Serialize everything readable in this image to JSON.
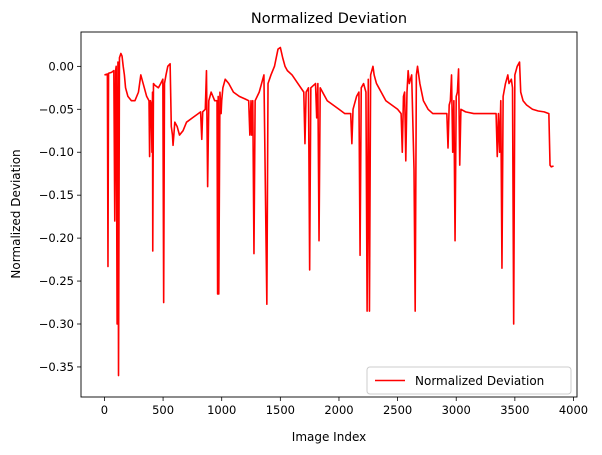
{
  "chart_data": {
    "type": "line",
    "title": "Normalized Deviation",
    "xlabel": "Image Index",
    "ylabel": "Normalized Deviation",
    "xlim": [
      -200,
      4030
    ],
    "ylim": [
      -0.385,
      0.04
    ],
    "xticks": [
      0,
      500,
      1000,
      1500,
      2000,
      2500,
      3000,
      3500,
      4000
    ],
    "yticks": [
      0.0,
      -0.05,
      -0.1,
      -0.15,
      -0.2,
      -0.25,
      -0.3,
      -0.35
    ],
    "ytick_labels": [
      "0.00",
      "−0.05",
      "−0.10",
      "−0.15",
      "−0.20",
      "−0.25",
      "−0.30",
      "−0.35"
    ],
    "grid": false,
    "legend_position": "lower-right",
    "series": [
      {
        "name": "Normalized Deviation",
        "color": "#ff0000",
        "points": [
          [
            0,
            -0.01
          ],
          [
            25,
            -0.009
          ],
          [
            30,
            -0.233
          ],
          [
            35,
            -0.008
          ],
          [
            60,
            -0.007
          ],
          [
            80,
            -0.005
          ],
          [
            88,
            -0.18
          ],
          [
            95,
            -0.005
          ],
          [
            100,
            0.0
          ],
          [
            108,
            -0.3
          ],
          [
            115,
            0.005
          ],
          [
            120,
            -0.36
          ],
          [
            128,
            0.01
          ],
          [
            140,
            0.015
          ],
          [
            150,
            0.012
          ],
          [
            160,
            0.0
          ],
          [
            170,
            -0.01
          ],
          [
            180,
            -0.025
          ],
          [
            200,
            -0.035
          ],
          [
            230,
            -0.04
          ],
          [
            260,
            -0.04
          ],
          [
            290,
            -0.03
          ],
          [
            310,
            -0.01
          ],
          [
            330,
            -0.02
          ],
          [
            360,
            -0.035
          ],
          [
            380,
            -0.04
          ],
          [
            385,
            -0.105
          ],
          [
            392,
            -0.04
          ],
          [
            400,
            -0.045
          ],
          [
            405,
            -0.1
          ],
          [
            410,
            -0.03
          ],
          [
            412,
            -0.215
          ],
          [
            418,
            -0.02
          ],
          [
            430,
            -0.022
          ],
          [
            460,
            -0.025
          ],
          [
            480,
            -0.02
          ],
          [
            498,
            -0.015
          ],
          [
            505,
            -0.275
          ],
          [
            512,
            -0.02
          ],
          [
            525,
            -0.01
          ],
          [
            540,
            0.0
          ],
          [
            560,
            0.003
          ],
          [
            570,
            -0.07
          ],
          [
            580,
            -0.08
          ],
          [
            585,
            -0.092
          ],
          [
            600,
            -0.065
          ],
          [
            620,
            -0.07
          ],
          [
            640,
            -0.08
          ],
          [
            670,
            -0.075
          ],
          [
            700,
            -0.065
          ],
          [
            750,
            -0.06
          ],
          [
            800,
            -0.055
          ],
          [
            820,
            -0.053
          ],
          [
            830,
            -0.085
          ],
          [
            838,
            -0.053
          ],
          [
            860,
            -0.05
          ],
          [
            870,
            -0.005
          ],
          [
            880,
            -0.14
          ],
          [
            890,
            -0.04
          ],
          [
            910,
            -0.03
          ],
          [
            940,
            -0.04
          ],
          [
            960,
            -0.04
          ],
          [
            965,
            -0.265
          ],
          [
            970,
            -0.035
          ],
          [
            975,
            -0.265
          ],
          [
            985,
            -0.03
          ],
          [
            995,
            -0.055
          ],
          [
            1000,
            -0.04
          ],
          [
            1010,
            -0.025
          ],
          [
            1030,
            -0.015
          ],
          [
            1060,
            -0.02
          ],
          [
            1100,
            -0.03
          ],
          [
            1150,
            -0.035
          ],
          [
            1200,
            -0.038
          ],
          [
            1230,
            -0.04
          ],
          [
            1240,
            -0.08
          ],
          [
            1250,
            -0.04
          ],
          [
            1255,
            -0.08
          ],
          [
            1265,
            -0.04
          ],
          [
            1275,
            -0.218
          ],
          [
            1285,
            -0.04
          ],
          [
            1320,
            -0.03
          ],
          [
            1360,
            -0.01
          ],
          [
            1385,
            -0.277
          ],
          [
            1395,
            -0.02
          ],
          [
            1420,
            -0.01
          ],
          [
            1450,
            0.0
          ],
          [
            1480,
            0.02
          ],
          [
            1500,
            0.022
          ],
          [
            1520,
            0.01
          ],
          [
            1540,
            0.0
          ],
          [
            1560,
            -0.005
          ],
          [
            1600,
            -0.01
          ],
          [
            1650,
            -0.02
          ],
          [
            1700,
            -0.03
          ],
          [
            1710,
            -0.09
          ],
          [
            1720,
            -0.03
          ],
          [
            1740,
            -0.025
          ],
          [
            1750,
            -0.237
          ],
          [
            1760,
            -0.025
          ],
          [
            1800,
            -0.02
          ],
          [
            1810,
            -0.06
          ],
          [
            1820,
            -0.02
          ],
          [
            1830,
            -0.203
          ],
          [
            1840,
            -0.025
          ],
          [
            1900,
            -0.04
          ],
          [
            1950,
            -0.045
          ],
          [
            2000,
            -0.05
          ],
          [
            2050,
            -0.055
          ],
          [
            2100,
            -0.055
          ],
          [
            2110,
            -0.09
          ],
          [
            2120,
            -0.05
          ],
          [
            2150,
            -0.035
          ],
          [
            2170,
            -0.03
          ],
          [
            2180,
            -0.22
          ],
          [
            2190,
            -0.025
          ],
          [
            2210,
            -0.02
          ],
          [
            2230,
            -0.03
          ],
          [
            2240,
            -0.285
          ],
          [
            2250,
            -0.015
          ],
          [
            2260,
            -0.285
          ],
          [
            2270,
            -0.01
          ],
          [
            2290,
            0.0
          ],
          [
            2300,
            -0.01
          ],
          [
            2320,
            -0.02
          ],
          [
            2340,
            -0.025
          ],
          [
            2360,
            -0.03
          ],
          [
            2400,
            -0.04
          ],
          [
            2450,
            -0.045
          ],
          [
            2500,
            -0.05
          ],
          [
            2530,
            -0.055
          ],
          [
            2540,
            -0.1
          ],
          [
            2550,
            -0.035
          ],
          [
            2560,
            -0.03
          ],
          [
            2570,
            -0.11
          ],
          [
            2580,
            -0.03
          ],
          [
            2590,
            -0.005
          ],
          [
            2600,
            -0.02
          ],
          [
            2620,
            -0.01
          ],
          [
            2640,
            -0.12
          ],
          [
            2650,
            -0.285
          ],
          [
            2660,
            -0.01
          ],
          [
            2670,
            0.0
          ],
          [
            2690,
            -0.02
          ],
          [
            2720,
            -0.04
          ],
          [
            2760,
            -0.05
          ],
          [
            2800,
            -0.055
          ],
          [
            2850,
            -0.055
          ],
          [
            2900,
            -0.055
          ],
          [
            2920,
            -0.055
          ],
          [
            2930,
            -0.095
          ],
          [
            2940,
            -0.045
          ],
          [
            2950,
            -0.04
          ],
          [
            2960,
            -0.01
          ],
          [
            2970,
            -0.1
          ],
          [
            2980,
            -0.04
          ],
          [
            2990,
            -0.203
          ],
          [
            3000,
            -0.035
          ],
          [
            3010,
            -0.03
          ],
          [
            3020,
            -0.003
          ],
          [
            3030,
            -0.115
          ],
          [
            3040,
            -0.05
          ],
          [
            3080,
            -0.053
          ],
          [
            3150,
            -0.055
          ],
          [
            3200,
            -0.055
          ],
          [
            3250,
            -0.055
          ],
          [
            3300,
            -0.055
          ],
          [
            3340,
            -0.055
          ],
          [
            3350,
            -0.105
          ],
          [
            3360,
            -0.055
          ],
          [
            3370,
            -0.1
          ],
          [
            3380,
            -0.04
          ],
          [
            3390,
            -0.235
          ],
          [
            3400,
            -0.035
          ],
          [
            3420,
            -0.02
          ],
          [
            3440,
            -0.01
          ],
          [
            3450,
            -0.02
          ],
          [
            3470,
            -0.015
          ],
          [
            3480,
            -0.025
          ],
          [
            3490,
            -0.3
          ],
          [
            3500,
            -0.01
          ],
          [
            3520,
            0.0
          ],
          [
            3540,
            0.005
          ],
          [
            3550,
            -0.03
          ],
          [
            3570,
            -0.04
          ],
          [
            3600,
            -0.045
          ],
          [
            3650,
            -0.05
          ],
          [
            3700,
            -0.052
          ],
          [
            3750,
            -0.053
          ],
          [
            3790,
            -0.055
          ],
          [
            3800,
            -0.115
          ],
          [
            3810,
            -0.117
          ],
          [
            3830,
            -0.116
          ]
        ]
      }
    ]
  }
}
